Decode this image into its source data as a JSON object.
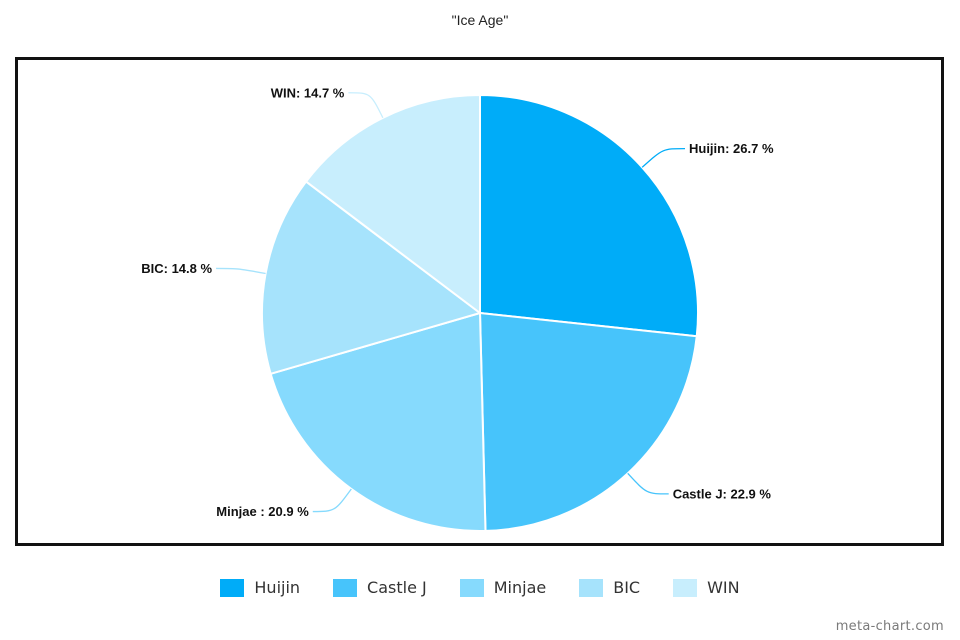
{
  "chart_data": {
    "type": "pie",
    "title": "\"Ice Age\"",
    "slices": [
      {
        "name": "Huijin",
        "value": 26.7,
        "label": "Huijin: 26.7 %",
        "color": "#00acf8"
      },
      {
        "name": "Castle J",
        "value": 22.9,
        "label": "Castle J: 22.9 %",
        "color": "#47c4fb"
      },
      {
        "name": "Minjae",
        "value": 20.9,
        "label": "Minjae : 20.9 %",
        "color": "#86dafd"
      },
      {
        "name": "BIC",
        "value": 14.8,
        "label": "BIC: 14.8 %",
        "color": "#a6e3fc"
      },
      {
        "name": "WIN",
        "value": 14.7,
        "label": "WIN: 14.7 %",
        "color": "#c8eefd"
      }
    ],
    "legend_position": "bottom",
    "start_angle": "top, clockwise"
  },
  "watermark": "meta-chart.com"
}
